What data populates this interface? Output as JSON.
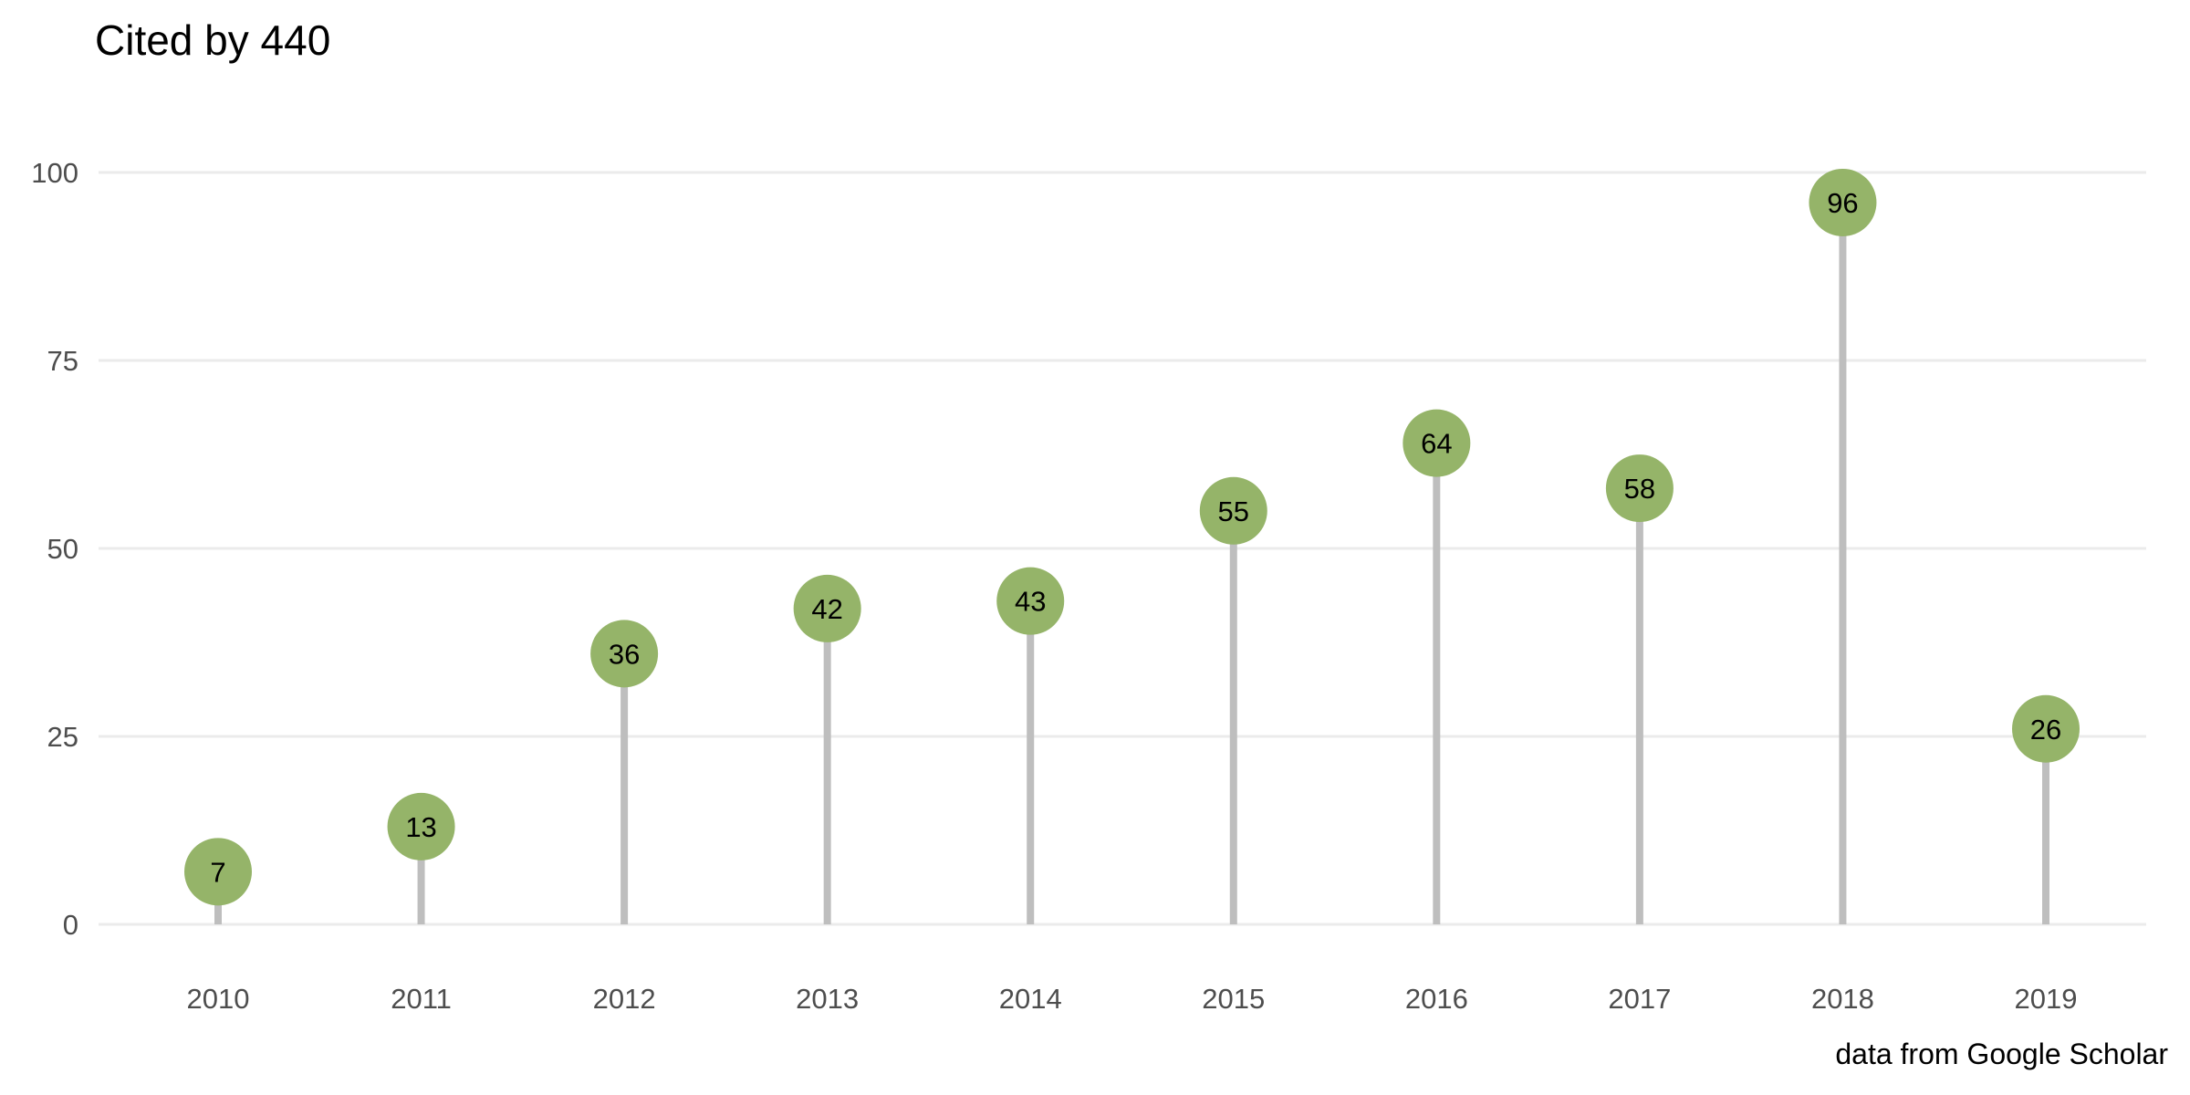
{
  "chart_data": {
    "type": "lollipop",
    "title": "Cited by 440",
    "caption": "data from Google Scholar",
    "xlabel": "",
    "ylabel": "",
    "categories": [
      "2010",
      "2011",
      "2012",
      "2013",
      "2014",
      "2015",
      "2016",
      "2017",
      "2018",
      "2019"
    ],
    "values": [
      7,
      13,
      36,
      42,
      43,
      55,
      64,
      58,
      96,
      26
    ],
    "ylim": [
      0,
      100
    ],
    "yticks": [
      0,
      25,
      50,
      75,
      100
    ],
    "grid": true,
    "legend": "none",
    "colors": {
      "point": "#95B469",
      "stem": "#BEBEBE",
      "grid": "#EBEBEB",
      "label": "#000000",
      "axis_text": "#4D4D4D"
    }
  }
}
